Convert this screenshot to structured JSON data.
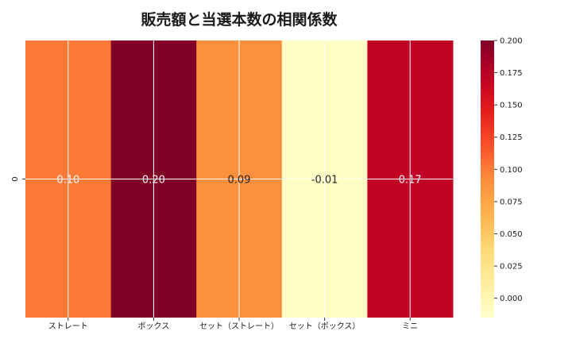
{
  "chart_data": {
    "type": "heatmap",
    "title": "販売額と当選本数の相関係数",
    "rows": [
      "0"
    ],
    "columns": [
      "ストレート",
      "ボックス",
      "セット（ストレート）",
      "セット（ボックス）",
      "ミニ"
    ],
    "values": [
      [
        0.1,
        0.2,
        0.09,
        -0.01,
        0.17
      ]
    ],
    "value_labels": [
      [
        "0.10",
        "0.20",
        "0.09",
        "-0.01",
        "0.17"
      ]
    ],
    "colorbar": {
      "colormap": "YlOrRd",
      "range": [
        -0.015,
        0.2
      ],
      "ticks": [
        "0.000",
        "0.025",
        "0.050",
        "0.075",
        "0.100",
        "0.125",
        "0.150",
        "0.175",
        "0.200"
      ]
    },
    "grid": true
  }
}
